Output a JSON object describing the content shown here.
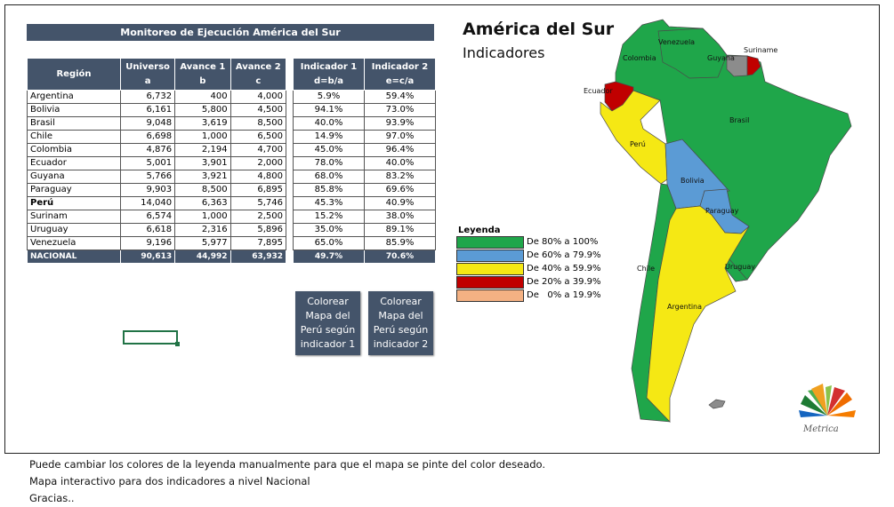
{
  "title_bar": "Monitoreo de Ejecución América del Sur",
  "table": {
    "headers": [
      [
        "Región",
        ""
      ],
      [
        "Universo",
        "a"
      ],
      [
        "Avance 1",
        "b"
      ],
      [
        "Avance 2",
        "c"
      ]
    ],
    "ind_headers": [
      [
        "Indicador 1",
        "d=b/a"
      ],
      [
        "Indicador 2",
        "e=c/a"
      ]
    ],
    "rows": [
      {
        "region": "Argentina",
        "a": "6,732",
        "b": "400",
        "c": "4,000",
        "d": "5.9%",
        "e": "59.4%"
      },
      {
        "region": "Bolivia",
        "a": "6,161",
        "b": "5,800",
        "c": "4,500",
        "d": "94.1%",
        "e": "73.0%"
      },
      {
        "region": "Brasil",
        "a": "9,048",
        "b": "3,619",
        "c": "8,500",
        "d": "40.0%",
        "e": "93.9%"
      },
      {
        "region": "Chile",
        "a": "6,698",
        "b": "1,000",
        "c": "6,500",
        "d": "14.9%",
        "e": "97.0%"
      },
      {
        "region": "Colombia",
        "a": "4,876",
        "b": "2,194",
        "c": "4,700",
        "d": "45.0%",
        "e": "96.4%"
      },
      {
        "region": "Ecuador",
        "a": "5,001",
        "b": "3,901",
        "c": "2,000",
        "d": "78.0%",
        "e": "40.0%"
      },
      {
        "region": "Guyana",
        "a": "5,766",
        "b": "3,921",
        "c": "4,800",
        "d": "68.0%",
        "e": "83.2%"
      },
      {
        "region": "Paraguay",
        "a": "9,903",
        "b": "8,500",
        "c": "6,895",
        "d": "85.8%",
        "e": "69.6%"
      },
      {
        "region": "Perú",
        "a": "14,040",
        "b": "6,363",
        "c": "5,746",
        "d": "45.3%",
        "e": "40.9%"
      },
      {
        "region": "Surinam",
        "a": "6,574",
        "b": "1,000",
        "c": "2,500",
        "d": "15.2%",
        "e": "38.0%"
      },
      {
        "region": "Uruguay",
        "a": "6,618",
        "b": "2,316",
        "c": "5,896",
        "d": "35.0%",
        "e": "89.1%"
      },
      {
        "region": "Venezuela",
        "a": "9,196",
        "b": "5,977",
        "c": "7,895",
        "d": "65.0%",
        "e": "85.9%"
      }
    ],
    "total": {
      "region": "NACIONAL",
      "a": "90,613",
      "b": "44,992",
      "c": "63,932",
      "d": "49.7%",
      "e": "70.6%"
    }
  },
  "buttons": {
    "ind1": "Colorear Mapa del Perú según indicador 1",
    "ind2": "Colorear Mapa del Perú según indicador 2"
  },
  "map": {
    "title": "América del Sur",
    "subtitle": "Indicadores",
    "labels": {
      "venezuela": "Venezuela",
      "colombia": "Colombia",
      "guyana": "Guyana",
      "suriname": "Suriname",
      "ecuador": "Ecuador",
      "brasil": "Brasil",
      "peru": "Perú",
      "bolivia": "Bolivia",
      "paraguay": "Paraguay",
      "chile": "Chile",
      "uruguay": "Uruguay",
      "argentina": "Argentina"
    },
    "logo": "Metrica"
  },
  "legend": {
    "title": "Leyenda",
    "items": [
      {
        "label": "De 80% a 100%",
        "color": "#1fa64a"
      },
      {
        "label": "De 60% a 79.9%",
        "color": "#5b9bd5"
      },
      {
        "label": "De 40% a 59.9%",
        "color": "#f5e814"
      },
      {
        "label": "De 20% a 39.9%",
        "color": "#c00000"
      },
      {
        "label": "De   0% a 19.9%",
        "color": "#f4b183"
      }
    ]
  },
  "notes": [
    "Puede cambiar los colores de la leyenda manualmente para que el mapa se pinte del color deseado.",
    "Mapa interactivo para dos indicadores a nivel Nacional",
    "Gracias.."
  ]
}
